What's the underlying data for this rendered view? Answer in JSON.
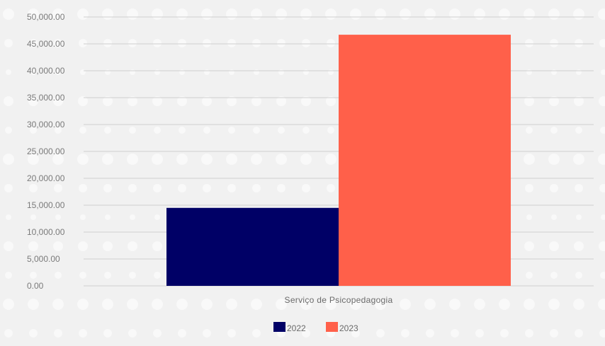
{
  "chart_data": {
    "type": "bar",
    "categories": [
      "Serviço de Psicopedagogia"
    ],
    "series": [
      {
        "name": "2022",
        "values": [
          14500
        ],
        "color": "#000066"
      },
      {
        "name": "2023",
        "values": [
          46700
        ],
        "color": "#ff604a"
      }
    ],
    "ylim": [
      0,
      50000
    ],
    "ytick_step": 5000,
    "ytick_labels": [
      "0.00",
      "5,000.00",
      "10,000.00",
      "15,000.00",
      "20,000.00",
      "25,000.00",
      "30,000.00",
      "35,000.00",
      "40,000.00",
      "45,000.00",
      "50,000.00"
    ],
    "grid": true,
    "legend_position": "bottom",
    "title": "",
    "xlabel": "",
    "ylabel": ""
  }
}
